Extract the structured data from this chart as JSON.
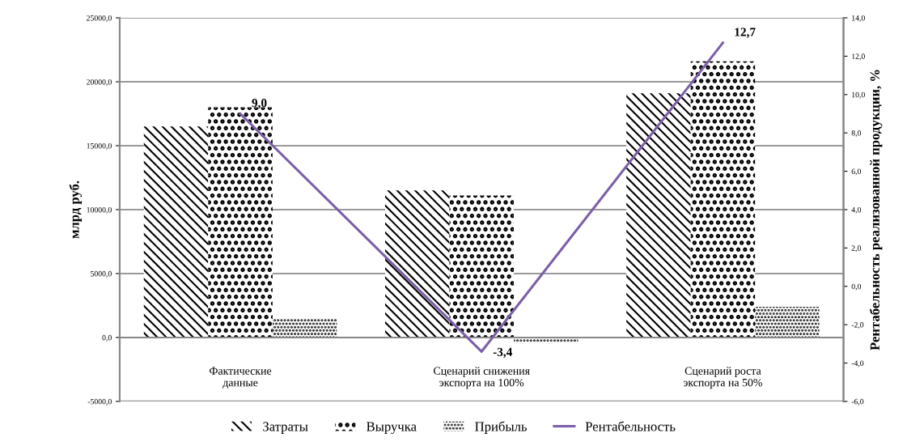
{
  "chart_data": {
    "type": "bar",
    "ylabel": "млрд руб.",
    "y2label": "Рентабельность реализованной продукции, %",
    "categories": [
      "Фактические\nданные",
      "Сценарий снижения\nэкспорта на 100%",
      "Сценарий роста\nэкспорта на 50%"
    ],
    "series": [
      {
        "name": "Затраты",
        "color": "#000000",
        "values": [
          16500,
          11500,
          19100
        ]
      },
      {
        "name": "Выручка",
        "color": "#000000",
        "values": [
          18000,
          11100,
          21600
        ]
      },
      {
        "name": "Прибыль",
        "color": "#000000",
        "values": [
          1500,
          -400,
          2400
        ]
      },
      {
        "name": "Рентабельность",
        "type": "line",
        "axis": "y2",
        "color": "#7b5fa8",
        "values": [
          9.0,
          -3.4,
          12.7
        ],
        "value_labels": [
          "9,0",
          "-3,4",
          "12,7"
        ]
      }
    ],
    "ylim": [
      -5000,
      25000
    ],
    "yticks": [
      {
        "value": -5000,
        "label": "-5000,0"
      },
      {
        "value": 0,
        "label": "0,0"
      },
      {
        "value": 5000,
        "label": "5000,0"
      },
      {
        "value": 10000,
        "label": "10000,0"
      },
      {
        "value": 15000,
        "label": "15000,0"
      },
      {
        "value": 20000,
        "label": "20000,0"
      },
      {
        "value": 25000,
        "label": "25000,0"
      }
    ],
    "y2lim": [
      -6,
      14
    ],
    "y2ticks": [
      {
        "value": -6,
        "label": "-6,0"
      },
      {
        "value": -4,
        "label": "-4,0"
      },
      {
        "value": -2,
        "label": "-2,0"
      },
      {
        "value": 0,
        "label": "0,0"
      },
      {
        "value": 2,
        "label": "2,0"
      },
      {
        "value": 4,
        "label": "4,0"
      },
      {
        "value": 6,
        "label": "6,0"
      },
      {
        "value": 8,
        "label": "8,0"
      },
      {
        "value": 10,
        "label": "10,0"
      },
      {
        "value": 12,
        "label": "12,0"
      },
      {
        "value": 14,
        "label": "14,0"
      }
    ],
    "grid": "y",
    "legend": "bottom",
    "marker": "none"
  }
}
